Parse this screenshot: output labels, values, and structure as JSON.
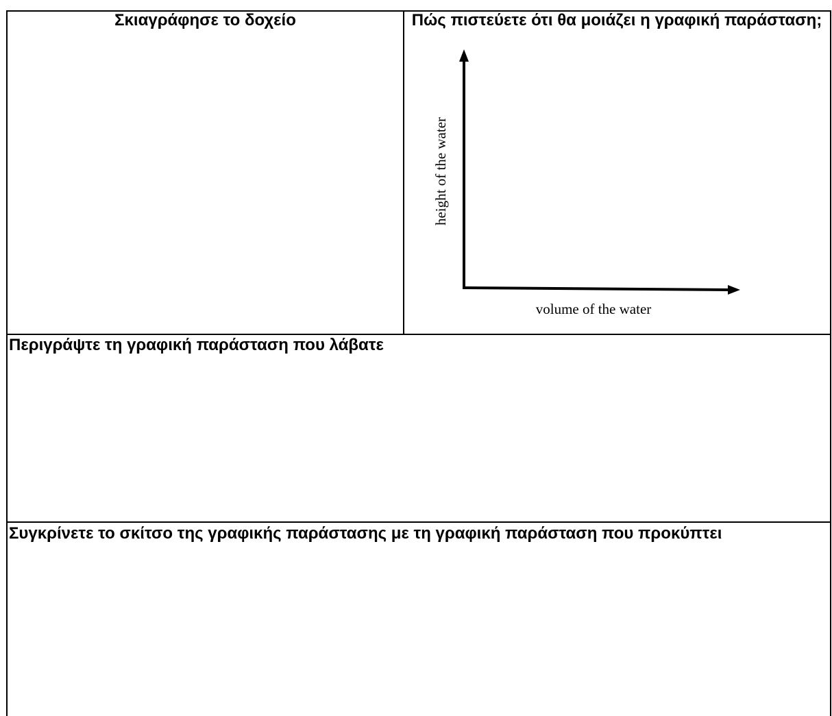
{
  "sketch": {
    "title": "Σκιαγράφησε το δοχείο"
  },
  "prediction": {
    "title": "Πώς πιστεύετε ότι θα μοιάζει η γραφική παράσταση;",
    "y_axis_label": "height of the water",
    "x_axis_label": "volume of the water"
  },
  "describe": {
    "title": "Περιγράψτε τη γραφική παράσταση που λάβατε"
  },
  "compare": {
    "title": "Συγκρίνετε το σκίτσο της γραφικής παράστασης με τη γραφική παράσταση που προκύπτει"
  }
}
